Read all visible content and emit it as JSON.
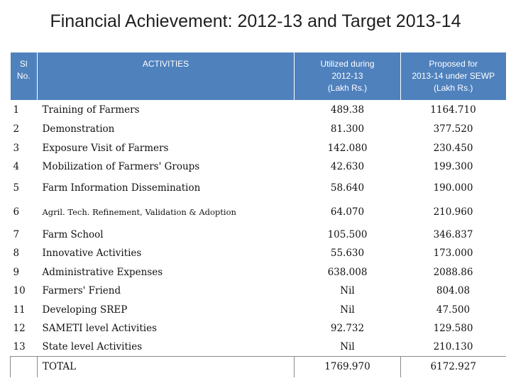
{
  "title": "Financial Achievement: 2012-13 and  Target 2013-14",
  "headers": {
    "sl_line1": "Sl",
    "sl_line2": "No.",
    "activities": "ACTIVITIES",
    "utilized_line1": "Utilized  during",
    "utilized_line2": "2012-13",
    "utilized_line3": "(Lakh Rs.)",
    "proposed_line1": "Proposed for",
    "proposed_line2": "2013-14 under SEWP",
    "proposed_line3": "(Lakh Rs.)"
  },
  "rows": [
    {
      "sl": "1",
      "activity": "Training of Farmers",
      "utilized": "489.38",
      "proposed": "1164.710"
    },
    {
      "sl": "2",
      "activity": "Demonstration",
      "utilized": "81.300",
      "proposed": "377.520"
    },
    {
      "sl": "3",
      "activity": "Exposure Visit of Farmers",
      "utilized": "142.080",
      "proposed": "230.450"
    },
    {
      "sl": "4",
      "activity": "Mobilization of Farmers' Groups",
      "utilized": "42.630",
      "proposed": "199.300"
    },
    {
      "sl": "5",
      "activity": "Farm Information Dissemination",
      "utilized": "58.640",
      "proposed": "190.000"
    },
    {
      "sl": "6",
      "activity": "Agril. Tech. Refinement,  Validation & Adoption",
      "utilized": "64.070",
      "proposed": "210.960"
    },
    {
      "sl": "7",
      "activity": "Farm School",
      "utilized": "105.500",
      "proposed": "346.837"
    },
    {
      "sl": "8",
      "activity": "Innovative Activities",
      "utilized": "55.630",
      "proposed": "173.000"
    },
    {
      "sl": "9",
      "activity": "Administrative Expenses",
      "utilized": "638.008",
      "proposed": "2088.86"
    },
    {
      "sl": "10",
      "activity": "Farmers' Friend",
      "utilized": "Nil",
      "proposed": "804.08"
    },
    {
      "sl": "11",
      "activity": "Developing SREP",
      "utilized": "Nil",
      "proposed": "47.500"
    },
    {
      "sl": "12",
      "activity": "SAMETI level Activities",
      "utilized": "92.732",
      "proposed": "129.580"
    },
    {
      "sl": "13",
      "activity": "State level Activities",
      "utilized": "Nil",
      "proposed": "210.130"
    }
  ],
  "total": {
    "label": "TOTAL",
    "utilized": "1769.970",
    "proposed": "6172.927"
  },
  "colors": {
    "header_bg": "#4f81bd",
    "header_text": "#ffffff"
  }
}
